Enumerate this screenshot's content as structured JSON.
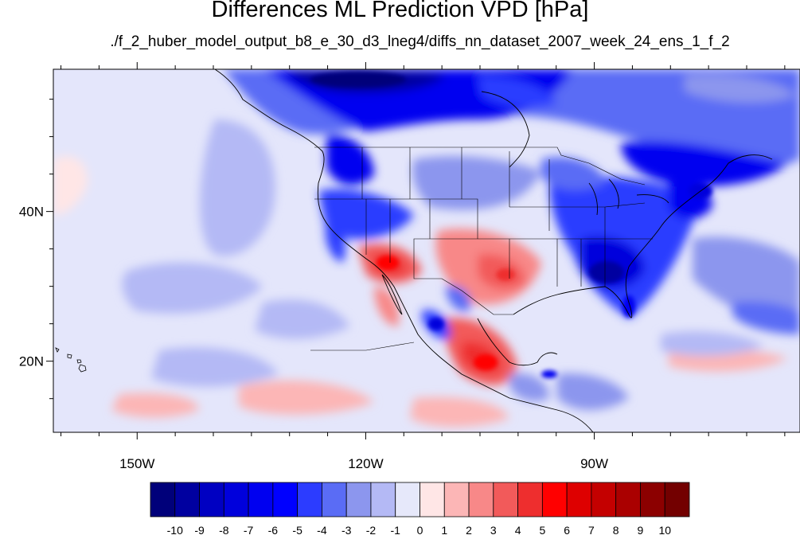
{
  "title": "Differences ML Prediction VPD [hPa]",
  "subtitle": "./f_2_huber_model_output_b8_e_30_d3_lneg4/diffs_nn_dataset_2007_week_24_ens_1_f_2",
  "map": {
    "projection": "lat-lon",
    "lon_range": [
      -161,
      -63
    ],
    "lat_range": [
      10.5,
      59
    ],
    "x_ticks": [
      {
        "lon": -150,
        "label": "150W"
      },
      {
        "lon": -120,
        "label": "120W"
      },
      {
        "lon": -90,
        "label": "90W"
      }
    ],
    "y_ticks": [
      {
        "lat": 40,
        "label": "40N"
      },
      {
        "lat": 20,
        "label": "20N"
      }
    ]
  },
  "colorbar": {
    "levels": [
      "-10",
      "-9",
      "-8",
      "-7",
      "-6",
      "-5",
      "-4",
      "-3",
      "-2",
      "-1",
      "0",
      "1",
      "2",
      "3",
      "4",
      "5",
      "6",
      "7",
      "8",
      "9",
      "10"
    ],
    "colors": [
      "#00007a",
      "#0000a0",
      "#0000c2",
      "#0000dc",
      "#0000f0",
      "#0000ff",
      "#2c3cff",
      "#5a6cf5",
      "#8c96ee",
      "#b4b9f5",
      "#e6e8fa",
      "#ffe6e6",
      "#fcb6b6",
      "#f88888",
      "#f25a5a",
      "#ee2e2e",
      "#ff0000",
      "#de0000",
      "#c40000",
      "#aa0000",
      "#8c0000",
      "#730000"
    ]
  },
  "ocean_color": "#e4e6fb",
  "features": [
    "Negative (blue) differences over Canada, the Pacific Northwest and the eastern United States",
    "Positive (red) differences over Arizona, Texas and central Mexico"
  ]
}
